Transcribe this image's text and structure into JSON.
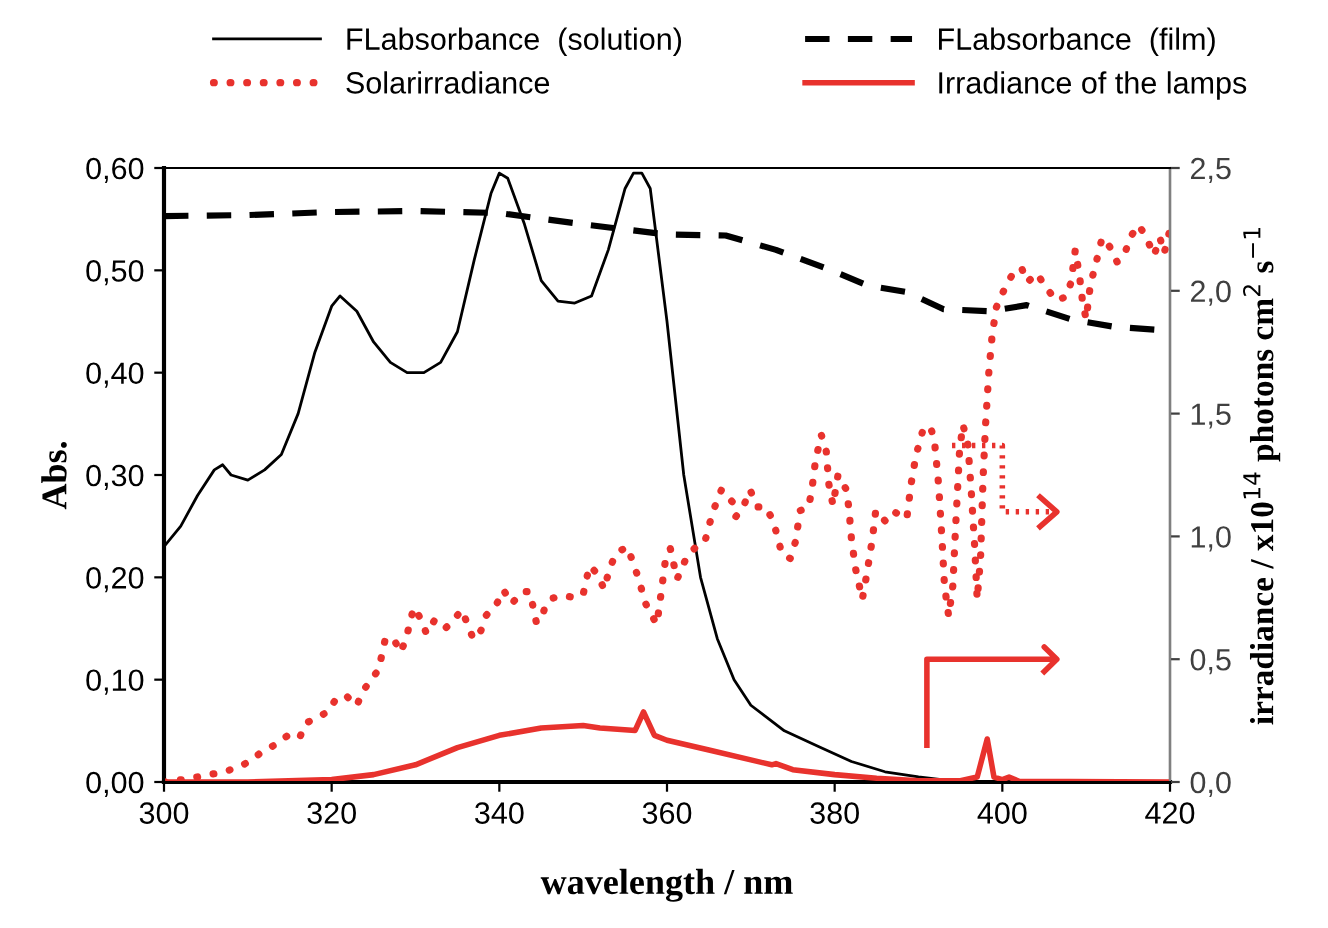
{
  "chart_data": {
    "type": "line",
    "xlabel": "wavelength / nm",
    "ylabel": "Abs.",
    "y2label": "irradiance / x10$^{14}$ photons cm$^{2}$ s$^{−1}$",
    "xlim": [
      300,
      420
    ],
    "xticks": [
      300,
      320,
      340,
      360,
      380,
      400,
      420
    ],
    "ylim": [
      0,
      0.6
    ],
    "yticks": [
      {
        "value": 0,
        "label": "0,00"
      },
      {
        "value": 0.1,
        "label": "0,10"
      },
      {
        "value": 0.2,
        "label": "0,20"
      },
      {
        "value": 0.3,
        "label": "0,30"
      },
      {
        "value": 0.4,
        "label": "0,40"
      },
      {
        "value": 0.5,
        "label": "0,50"
      },
      {
        "value": 0.6,
        "label": "0,60"
      }
    ],
    "y2lim": [
      0,
      2.5
    ],
    "y2ticks": [
      {
        "value": 0,
        "label": "0,0"
      },
      {
        "value": 0.5,
        "label": "0,5"
      },
      {
        "value": 1,
        "label": "1,0"
      },
      {
        "value": 1.5,
        "label": "1,5"
      },
      {
        "value": 2,
        "label": "2,0"
      },
      {
        "value": 2.5,
        "label": "2,5"
      }
    ],
    "grid": false,
    "legend": "top",
    "marker": "none",
    "series": [
      {
        "name": "FLabsorbance  (solution)",
        "color": "#000000",
        "line_style": "solid",
        "x": [
          300,
          302,
          304,
          306,
          307,
          308,
          310,
          312,
          314,
          316,
          318,
          320,
          321,
          323,
          325,
          327,
          329,
          331,
          333,
          335,
          337,
          339,
          340,
          341,
          343,
          345,
          347,
          349,
          351,
          353,
          355,
          356,
          357,
          358,
          360,
          362,
          364,
          366,
          368,
          370,
          374,
          378,
          382,
          386,
          390,
          395,
          400
        ],
        "values": [
          0.23,
          0.25,
          0.28,
          0.305,
          0.31,
          0.3,
          0.295,
          0.305,
          0.32,
          0.36,
          0.42,
          0.465,
          0.475,
          0.46,
          0.43,
          0.41,
          0.4,
          0.4,
          0.41,
          0.44,
          0.51,
          0.575,
          0.595,
          0.59,
          0.545,
          0.49,
          0.47,
          0.468,
          0.475,
          0.52,
          0.58,
          0.595,
          0.595,
          0.58,
          0.45,
          0.3,
          0.2,
          0.14,
          0.1,
          0.075,
          0.05,
          0.035,
          0.02,
          0.01,
          0.005,
          0.0,
          0.0
        ]
      },
      {
        "name": "FLabsorbance  (film)",
        "color": "#000000",
        "line_style": "dashed",
        "x": [
          300,
          310,
          320,
          330,
          340,
          350,
          360,
          367,
          373,
          379,
          384,
          388.5,
          393,
          398.4,
          402.9,
          408.2,
          413.2,
          420
        ],
        "values": [
          0.553,
          0.554,
          0.557,
          0.558,
          0.556,
          0.545,
          0.535,
          0.534,
          0.52,
          0.502,
          0.485,
          0.479,
          0.462,
          0.46,
          0.466,
          0.452,
          0.445,
          0.441
        ]
      },
      {
        "name": "Solarirradiance",
        "color": "#e8322d",
        "line_style": "dotted",
        "axis": "y2",
        "x": [
          300.0,
          301.2,
          303.1,
          305.0,
          306.9,
          308.7,
          310.3,
          311.7,
          313.4,
          314.9,
          316.2,
          316.9,
          318.3,
          319.6,
          320.5,
          321.7,
          323.0,
          323.7,
          324.8,
          325.6,
          326.0,
          326.4,
          327.4,
          328.2,
          328.9,
          329.3,
          329.8,
          330.6,
          331.3,
          332.3,
          333.6,
          334.5,
          335.5,
          336.2,
          336.9,
          337.8,
          338.4,
          339.7,
          340.5,
          341.5,
          342.6,
          343.6,
          344.0,
          344.4,
          345.0,
          345.5,
          346.3,
          347.6,
          349.0,
          350.0,
          350.4,
          350.8,
          351.7,
          352.5,
          353.2,
          354.0,
          355.3,
          355.9,
          356.6,
          357.4,
          358.2,
          358.8,
          359.3,
          359.8,
          360.4,
          361.2,
          362.4,
          363.4,
          364.5,
          365.3,
          365.9,
          366.5,
          367.8,
          368.2,
          369.1,
          369.9,
          370.8,
          371.8,
          372.7,
          373.2,
          373.7,
          374.7,
          375.3,
          375.9,
          376.9,
          377.3,
          377.7,
          378.4,
          379.0,
          379.3,
          379.8,
          380.4,
          381.4,
          381.7,
          382.0,
          382.5,
          383.3,
          383.8,
          384.5,
          384.9,
          386.1,
          387.1,
          388.6,
          389.1,
          389.7,
          390.5,
          391.4,
          391.9,
          392.4,
          392.8,
          393.1,
          393.6,
          394.1,
          394.4,
          394.9,
          395.3,
          395.9,
          396.3,
          396.7,
          397.0,
          397.4,
          397.7,
          398.0,
          398.4,
          398.8,
          399.3,
          400.0,
          400.8,
          401.5,
          402.3,
          403.0,
          404.1,
          405.3,
          406.4,
          407.6,
          408.2,
          408.7,
          409.2,
          409.6,
          410.0,
          410.5,
          411.4,
          411.9,
          412.8,
          413.7,
          414.7,
          415.3,
          416.3,
          417.3,
          418.1,
          418.8,
          419.3,
          420.0
        ],
        "values": [
          0,
          0.005,
          0.014,
          0.028,
          0.039,
          0.058,
          0.085,
          0.124,
          0.154,
          0.193,
          0.182,
          0.239,
          0.264,
          0.286,
          0.338,
          0.352,
          0.311,
          0.369,
          0.421,
          0.457,
          0.52,
          0.583,
          0.583,
          0.528,
          0.583,
          0.646,
          0.71,
          0.666,
          0.605,
          0.66,
          0.627,
          0.657,
          0.701,
          0.644,
          0.581,
          0.616,
          0.677,
          0.726,
          0.781,
          0.726,
          0.773,
          0.776,
          0.718,
          0.652,
          0.657,
          0.721,
          0.748,
          0.759,
          0.751,
          0.764,
          0.828,
          0.88,
          0.847,
          0.785,
          0.875,
          0.935,
          0.957,
          0.897,
          0.83,
          0.73,
          0.676,
          0.643,
          0.77,
          0.9,
          0.95,
          0.826,
          0.92,
          0.955,
          0.976,
          1.08,
          1.14,
          1.19,
          1.14,
          1.08,
          1.12,
          1.19,
          1.12,
          1.12,
          1.06,
          0.995,
          0.93,
          0.91,
          0.976,
          1.105,
          1.12,
          1.195,
          1.305,
          1.414,
          1.346,
          1.214,
          1.127,
          1.25,
          1.19,
          1.113,
          0.99,
          0.867,
          0.744,
          0.84,
          0.99,
          1.105,
          1.06,
          1.1,
          1.072,
          1.21,
          1.33,
          1.43,
          1.45,
          1.39,
          1.21,
          0.99,
          0.8,
          0.675,
          0.8,
          1.02,
          1.35,
          1.455,
          1.373,
          1.18,
          0.96,
          0.744,
          0.91,
          1.236,
          1.455,
          1.674,
          1.824,
          1.934,
          1.989,
          2.043,
          2.084,
          2.092,
          2.035,
          2.071,
          2.01,
          1.961,
          1.975,
          2.035,
          2.166,
          2.062,
          1.947,
          1.885,
          2.024,
          2.144,
          2.216,
          2.18,
          2.117,
          2.161,
          2.221,
          2.268,
          2.207,
          2.144,
          2.216,
          2.153,
          2.25
        ]
      },
      {
        "name": "Irradiance of the lamps",
        "color": "#e8322d",
        "line_style": "solid",
        "axis": "y2",
        "x": [
          300,
          310,
          320,
          325,
          330,
          335,
          340,
          345,
          350,
          352,
          356.2,
          357.2,
          358.5,
          360,
          365,
          370,
          372.5,
          373,
          375,
          380,
          385,
          390,
          395,
          397,
          398.2,
          399,
          400,
          400.8,
          402,
          420
        ],
        "values": [
          0,
          0.0,
          0.01,
          0.03,
          0.07,
          0.14,
          0.19,
          0.22,
          0.23,
          0.22,
          0.21,
          0.285,
          0.19,
          0.17,
          0.13,
          0.09,
          0.07,
          0.075,
          0.05,
          0.03,
          0.015,
          0.005,
          0.005,
          0.02,
          0.175,
          0.02,
          0.01,
          0.02,
          0.003,
          0.0
        ]
      }
    ]
  }
}
